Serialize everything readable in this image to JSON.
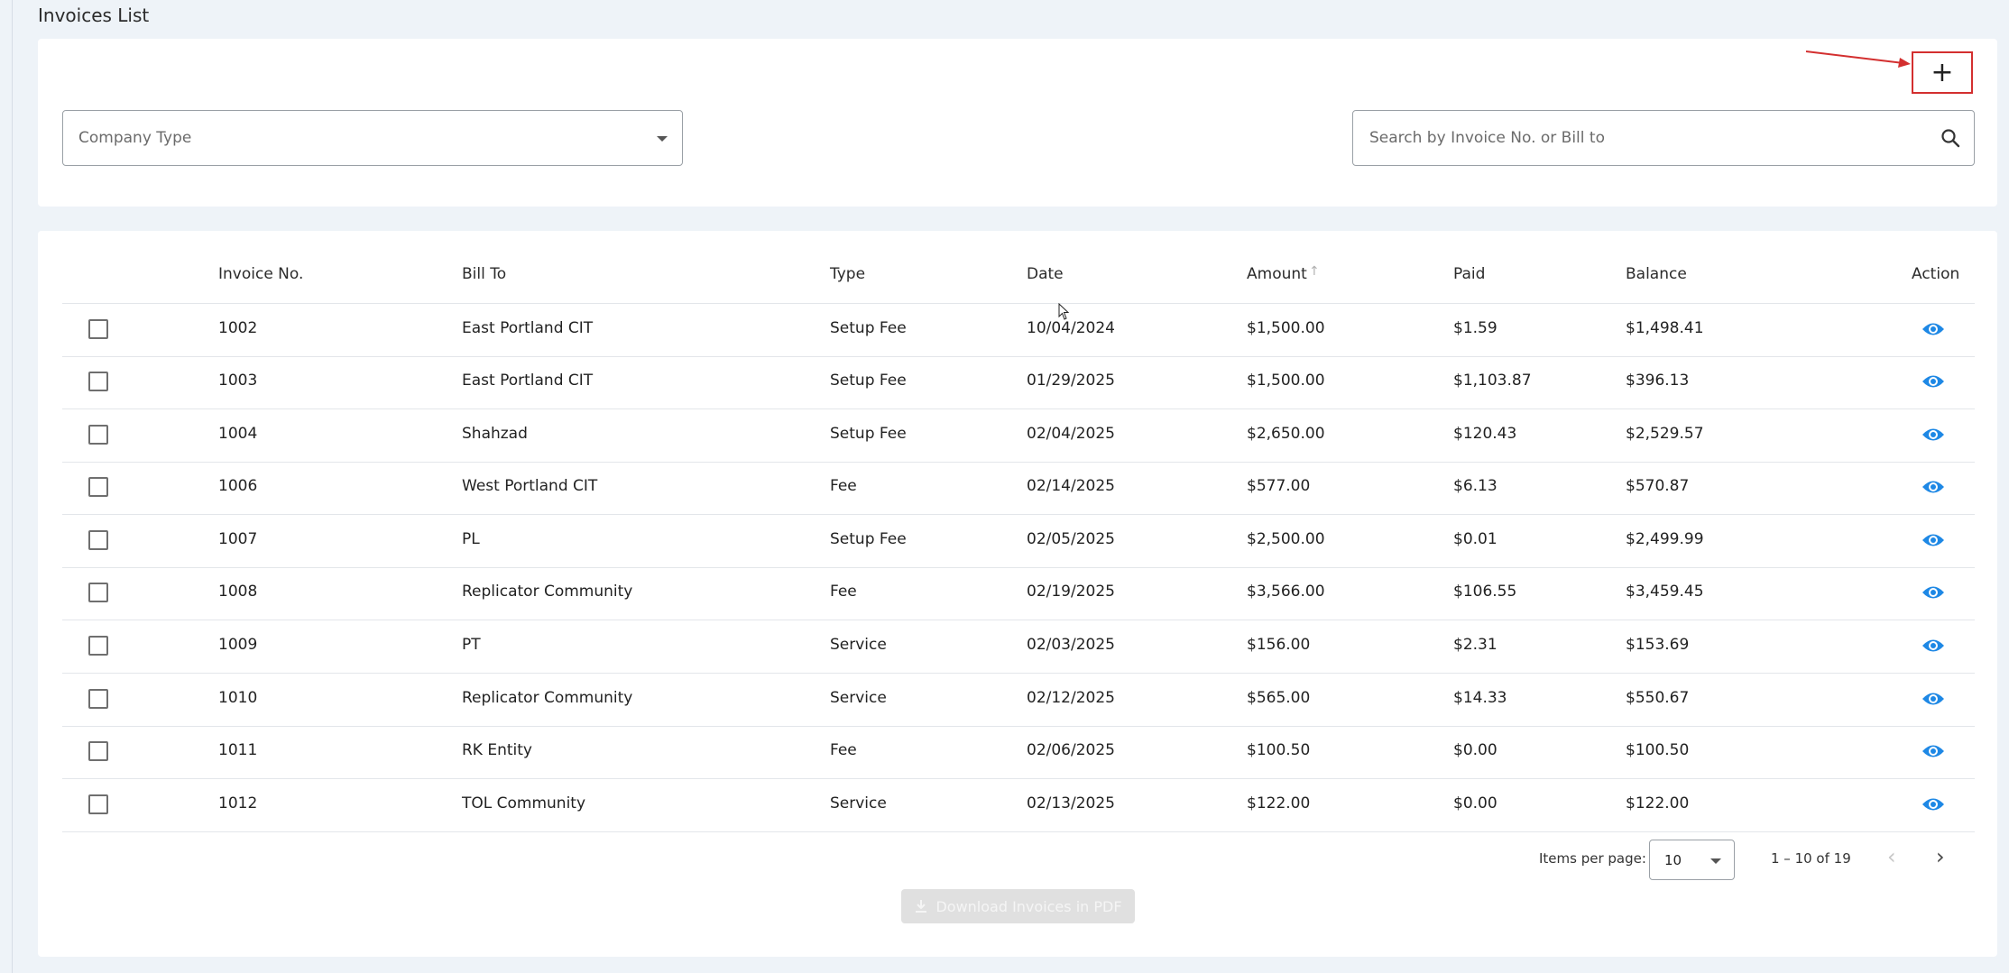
{
  "page": {
    "title": "Invoices List"
  },
  "filters": {
    "add_label": "+",
    "company_type_placeholder": "Company Type",
    "search_placeholder": "Search by Invoice No. or Bill to"
  },
  "table": {
    "headers": {
      "invoice_no": "Invoice No.",
      "bill_to": "Bill To",
      "type": "Type",
      "date": "Date",
      "amount": "Amount",
      "paid": "Paid",
      "balance": "Balance",
      "action": "Action"
    },
    "rows": [
      {
        "invoice_no": "1002",
        "bill_to": "East Portland CIT",
        "type": "Setup Fee",
        "date": "10/04/2024",
        "amount": "$1,500.00",
        "paid": "$1.59",
        "balance": "$1,498.41"
      },
      {
        "invoice_no": "1003",
        "bill_to": "East Portland CIT",
        "type": "Setup Fee",
        "date": "01/29/2025",
        "amount": "$1,500.00",
        "paid": "$1,103.87",
        "balance": "$396.13"
      },
      {
        "invoice_no": "1004",
        "bill_to": "Shahzad",
        "type": "Setup Fee",
        "date": "02/04/2025",
        "amount": "$2,650.00",
        "paid": "$120.43",
        "balance": "$2,529.57"
      },
      {
        "invoice_no": "1006",
        "bill_to": "West Portland CIT",
        "type": "Fee",
        "date": "02/14/2025",
        "amount": "$577.00",
        "paid": "$6.13",
        "balance": "$570.87"
      },
      {
        "invoice_no": "1007",
        "bill_to": "PL",
        "type": "Setup Fee",
        "date": "02/05/2025",
        "amount": "$2,500.00",
        "paid": "$0.01",
        "balance": "$2,499.99"
      },
      {
        "invoice_no": "1008",
        "bill_to": "Replicator Community",
        "type": "Fee",
        "date": "02/19/2025",
        "amount": "$3,566.00",
        "paid": "$106.55",
        "balance": "$3,459.45"
      },
      {
        "invoice_no": "1009",
        "bill_to": "PT",
        "type": "Service",
        "date": "02/03/2025",
        "amount": "$156.00",
        "paid": "$2.31",
        "balance": "$153.69"
      },
      {
        "invoice_no": "1010",
        "bill_to": "Replicator Community",
        "type": "Service",
        "date": "02/12/2025",
        "amount": "$565.00",
        "paid": "$14.33",
        "balance": "$550.67"
      },
      {
        "invoice_no": "1011",
        "bill_to": "RK Entity",
        "type": "Fee",
        "date": "02/06/2025",
        "amount": "$100.50",
        "paid": "$0.00",
        "balance": "$100.50"
      },
      {
        "invoice_no": "1012",
        "bill_to": "TOL Community",
        "type": "Service",
        "date": "02/13/2025",
        "amount": "$122.00",
        "paid": "$0.00",
        "balance": "$122.00"
      }
    ]
  },
  "pagination": {
    "items_per_page_label": "Items per page:",
    "items_per_page_value": "10",
    "range_label": "1 – 10 of 19"
  },
  "download": {
    "label": "Download Invoices in PDF"
  },
  "colors": {
    "background": "#eef3f8",
    "accent_eye": "#1e88e5",
    "highlight_red": "#d32f2f"
  },
  "icons": {
    "add": "plus-icon",
    "search": "search-icon",
    "view": "eye-icon",
    "sort": "arrow-up-icon",
    "download": "download-icon",
    "prev": "chevron-left-icon",
    "next": "chevron-right-icon"
  }
}
